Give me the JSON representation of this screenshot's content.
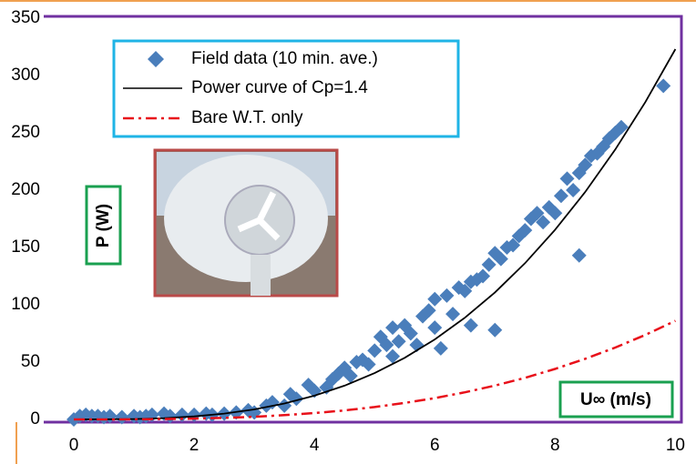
{
  "chart_data": {
    "type": "scatter",
    "xlabel": "U∞ (m/s)",
    "ylabel": "P (W)",
    "xlim": [
      -0.5,
      10.1
    ],
    "ylim": [
      -2.4,
      351.6
    ],
    "xticks": [
      0,
      2,
      4,
      6,
      8,
      10
    ],
    "yticks": [
      0,
      50,
      100,
      150,
      200,
      250,
      300,
      350
    ],
    "series": [
      {
        "name": "Field data (10 min. ave.)",
        "type": "scatter",
        "color": "#4a7ebb",
        "x": [
          0,
          0.1,
          0.2,
          0.3,
          0.4,
          0.5,
          0.6,
          0.8,
          1.0,
          1.1,
          1.2,
          1.3,
          1.5,
          1.6,
          1.8,
          2.0,
          2.2,
          2.3,
          2.5,
          2.7,
          2.9,
          3.0,
          3.2,
          3.3,
          3.5,
          3.6,
          3.7,
          3.9,
          4.0,
          4.2,
          4.3,
          4.4,
          4.5,
          4.6,
          4.7,
          4.8,
          4.9,
          5.0,
          5.1,
          5.2,
          5.3,
          5.3,
          5.4,
          5.5,
          5.6,
          5.7,
          5.8,
          5.9,
          6.0,
          6.0,
          6.1,
          6.2,
          6.3,
          6.4,
          6.5,
          6.6,
          6.6,
          6.7,
          6.8,
          6.9,
          7.0,
          7.0,
          7.1,
          7.2,
          7.3,
          7.4,
          7.5,
          7.6,
          7.7,
          7.8,
          7.9,
          8.0,
          8.1,
          8.2,
          8.3,
          8.4,
          8.4,
          8.5,
          8.6,
          8.7,
          8.8,
          8.9,
          9.0,
          9.1,
          9.8
        ],
        "values": [
          0,
          3,
          4,
          3,
          3,
          2,
          3,
          2,
          3,
          2,
          3,
          4,
          5,
          3,
          4,
          4,
          5,
          4,
          5,
          6,
          8,
          6,
          12,
          15,
          12,
          22,
          18,
          30,
          25,
          28,
          35,
          40,
          45,
          38,
          50,
          52,
          48,
          60,
          72,
          65,
          55,
          80,
          68,
          82,
          75,
          65,
          90,
          95,
          105,
          80,
          62,
          108,
          92,
          115,
          112,
          120,
          82,
          122,
          125,
          135,
          145,
          78,
          140,
          150,
          152,
          160,
          165,
          175,
          180,
          172,
          185,
          180,
          195,
          210,
          200,
          215,
          143,
          222,
          230,
          232,
          238,
          245,
          250,
          255,
          291
        ]
      },
      {
        "name": "Power curve of Cp=1.4",
        "type": "line",
        "color": "#000000",
        "dash": "none",
        "x": [
          0,
          0.5,
          1,
          1.5,
          2,
          2.5,
          3,
          3.5,
          4,
          4.5,
          5,
          5.5,
          6,
          6.5,
          7,
          7.5,
          8,
          8.5,
          9,
          9.5,
          10
        ],
        "values": [
          0,
          0.04,
          0.32,
          1.09,
          2.58,
          5.05,
          8.72,
          13.85,
          20.67,
          29.43,
          40.38,
          53.74,
          69.77,
          88.71,
          110.79,
          136.27,
          165.38,
          198.36,
          235.44,
          276.86,
          323
        ]
      },
      {
        "name": "Bare W.T. only",
        "type": "line",
        "color": "#e8101a",
        "dash": "12 5 3 5",
        "x": [
          0,
          0.5,
          1,
          1.5,
          2,
          2.5,
          3,
          3.5,
          4,
          4.5,
          5,
          5.5,
          6,
          6.5,
          7,
          7.5,
          8,
          8.5,
          9,
          9.5,
          10
        ],
        "values": [
          0,
          0.01,
          0.09,
          0.29,
          0.69,
          1.34,
          2.32,
          3.69,
          5.5,
          7.84,
          10.75,
          14.31,
          18.58,
          23.62,
          29.5,
          36.28,
          44.03,
          52.82,
          62.69,
          73.72,
          86
        ]
      }
    ]
  }
}
